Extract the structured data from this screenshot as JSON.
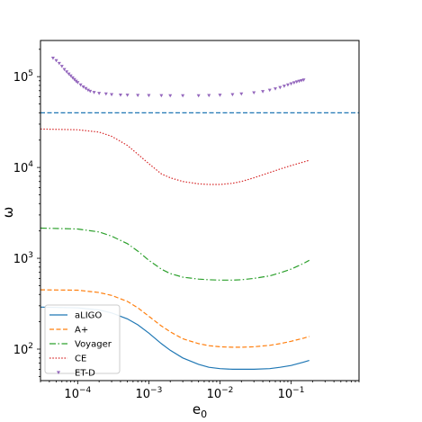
{
  "chart_data": {
    "type": "line",
    "xlabel": "e",
    "xlabel_sub": "0",
    "ylabel": "ω",
    "xscale": "log",
    "yscale": "log",
    "xlim": [
      3e-05,
      0.9
    ],
    "ylim": [
      45,
      250000
    ],
    "grid": false,
    "legend_position": "lower-left",
    "xticks": [
      {
        "value": 0.0001,
        "base": "10",
        "exp": "−4"
      },
      {
        "value": 0.001,
        "base": "10",
        "exp": "−3"
      },
      {
        "value": 0.01,
        "base": "10",
        "exp": "−2"
      },
      {
        "value": 0.1,
        "base": "10",
        "exp": "−1"
      }
    ],
    "yticks": [
      {
        "value": 100,
        "base": "10",
        "exp": "2"
      },
      {
        "value": 1000,
        "base": "10",
        "exp": "3"
      },
      {
        "value": 10000,
        "base": "10",
        "exp": "4"
      },
      {
        "value": 100000,
        "base": "10",
        "exp": "5"
      }
    ],
    "hline": {
      "y": 40000,
      "color": "#1f77b4",
      "style": "dashed"
    },
    "series": [
      {
        "name": "aLIGO",
        "color": "#1f77b4",
        "style": "solid",
        "x": [
          3e-05,
          0.0001,
          0.0002,
          0.0003,
          0.0005,
          0.0007,
          0.001,
          0.0015,
          0.002,
          0.003,
          0.005,
          0.007,
          0.01,
          0.015,
          0.02,
          0.03,
          0.05,
          0.07,
          0.1,
          0.15,
          0.18
        ],
        "y": [
          290,
          285,
          270,
          250,
          215,
          185,
          150,
          115,
          97,
          80,
          68,
          63,
          61,
          60,
          60,
          60,
          61,
          63,
          66,
          72,
          75
        ]
      },
      {
        "name": "A+",
        "color": "#ff7f0e",
        "style": "dashed",
        "x": [
          3e-05,
          0.0001,
          0.0002,
          0.0003,
          0.0005,
          0.0007,
          0.001,
          0.0015,
          0.002,
          0.003,
          0.005,
          0.007,
          0.01,
          0.015,
          0.02,
          0.03,
          0.05,
          0.07,
          0.1,
          0.15,
          0.18
        ],
        "y": [
          450,
          445,
          420,
          390,
          335,
          285,
          230,
          180,
          155,
          130,
          115,
          109,
          106,
          105,
          105,
          106,
          110,
          115,
          122,
          132,
          138
        ]
      },
      {
        "name": "Voyager",
        "color": "#2ca02c",
        "style": "dashdot",
        "x": [
          3e-05,
          0.0001,
          0.0002,
          0.0003,
          0.0005,
          0.0007,
          0.001,
          0.0015,
          0.002,
          0.003,
          0.005,
          0.007,
          0.01,
          0.015,
          0.02,
          0.03,
          0.05,
          0.07,
          0.1,
          0.15,
          0.18
        ],
        "y": [
          2150,
          2100,
          1950,
          1750,
          1450,
          1200,
          950,
          760,
          680,
          620,
          590,
          580,
          575,
          575,
          580,
          600,
          640,
          690,
          760,
          880,
          950
        ]
      },
      {
        "name": "CE",
        "color": "#d62728",
        "style": "dotted",
        "x": [
          3e-05,
          0.0001,
          0.0002,
          0.0003,
          0.0005,
          0.0007,
          0.001,
          0.0015,
          0.002,
          0.003,
          0.005,
          0.007,
          0.01,
          0.015,
          0.02,
          0.03,
          0.05,
          0.07,
          0.1,
          0.15,
          0.18
        ],
        "y": [
          26500,
          26000,
          24500,
          22000,
          17500,
          14000,
          11000,
          8500,
          7700,
          7000,
          6600,
          6500,
          6500,
          6700,
          7000,
          7700,
          8800,
          9600,
          10500,
          11500,
          12000
        ]
      },
      {
        "name": "ET-D",
        "color": "#9467bd",
        "style": "markers",
        "x": [
          4.5e-05,
          5e-05,
          5.5e-05,
          6e-05,
          6.5e-05,
          7e-05,
          7.5e-05,
          8e-05,
          8.5e-05,
          9e-05,
          9.5e-05,
          0.0001,
          0.00011,
          0.00012,
          0.00013,
          0.00014,
          0.00015,
          0.00017,
          0.0002,
          0.00025,
          0.0003,
          0.0004,
          0.0005,
          0.0007,
          0.001,
          0.0015,
          0.002,
          0.003,
          0.005,
          0.007,
          0.01,
          0.015,
          0.02,
          0.03,
          0.04,
          0.05,
          0.06,
          0.07,
          0.08,
          0.09,
          0.1,
          0.11,
          0.12,
          0.13,
          0.14,
          0.15
        ],
        "y": [
          160000,
          150000,
          140000,
          130000,
          120000,
          113000,
          107000,
          102000,
          97000,
          93000,
          89000,
          86000,
          81000,
          77000,
          74000,
          71000,
          69000,
          67000,
          65500,
          64500,
          63500,
          62800,
          62500,
          62200,
          62000,
          61800,
          61700,
          61600,
          61700,
          62000,
          62500,
          63500,
          64500,
          66500,
          68500,
          71000,
          73500,
          76000,
          78500,
          81000,
          83500,
          85500,
          87500,
          89000,
          90500,
          92000
        ]
      }
    ]
  }
}
